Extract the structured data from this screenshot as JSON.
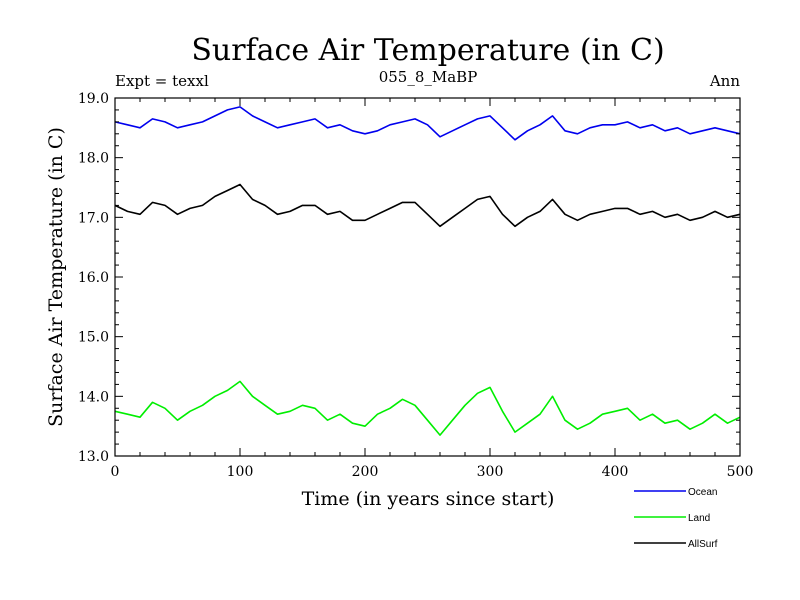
{
  "chart_data": {
    "type": "line",
    "title": "Surface Air Temperature (in C)",
    "subtitle_left": "Expt = texxl",
    "subtitle_center": "055_8_MaBP",
    "subtitle_right": "Ann",
    "xlabel": "Time (in years since start)",
    "ylabel": "Surface Air Temperature (in C)",
    "xlim": [
      0,
      500
    ],
    "ylim": [
      13.0,
      19.0
    ],
    "x_ticks": [
      0,
      100,
      200,
      300,
      400,
      500
    ],
    "y_ticks": [
      13.0,
      14.0,
      15.0,
      16.0,
      17.0,
      18.0,
      19.0
    ],
    "y_tick_labels": [
      "13.0",
      "14.0",
      "15.0",
      "16.0",
      "17.0",
      "18.0",
      "19.0"
    ],
    "grid": false,
    "legend_position": "bottom-right, below plot",
    "series": [
      {
        "name": "Ocean",
        "color": "#0000ee",
        "x": [
          0,
          10,
          20,
          30,
          40,
          50,
          60,
          70,
          80,
          90,
          100,
          110,
          120,
          130,
          140,
          150,
          160,
          170,
          180,
          190,
          200,
          210,
          220,
          230,
          240,
          250,
          260,
          270,
          280,
          290,
          300,
          310,
          320,
          330,
          340,
          350,
          360,
          370,
          380,
          390,
          400,
          410,
          420,
          430,
          440,
          450,
          460,
          470,
          480,
          490,
          500
        ],
        "values": [
          18.6,
          18.55,
          18.5,
          18.65,
          18.6,
          18.5,
          18.55,
          18.6,
          18.7,
          18.8,
          18.85,
          18.7,
          18.6,
          18.5,
          18.55,
          18.6,
          18.65,
          18.5,
          18.55,
          18.45,
          18.4,
          18.45,
          18.55,
          18.6,
          18.65,
          18.55,
          18.35,
          18.45,
          18.55,
          18.65,
          18.7,
          18.5,
          18.3,
          18.45,
          18.55,
          18.7,
          18.45,
          18.4,
          18.5,
          18.55,
          18.55,
          18.6,
          18.5,
          18.55,
          18.45,
          18.5,
          18.4,
          18.45,
          18.5,
          18.45,
          18.4
        ]
      },
      {
        "name": "Land",
        "color": "#00ee00",
        "x": [
          0,
          10,
          20,
          30,
          40,
          50,
          60,
          70,
          80,
          90,
          100,
          110,
          120,
          130,
          140,
          150,
          160,
          170,
          180,
          190,
          200,
          210,
          220,
          230,
          240,
          250,
          260,
          270,
          280,
          290,
          300,
          310,
          320,
          330,
          340,
          350,
          360,
          370,
          380,
          390,
          400,
          410,
          420,
          430,
          440,
          450,
          460,
          470,
          480,
          490,
          500
        ],
        "values": [
          13.75,
          13.7,
          13.65,
          13.9,
          13.8,
          13.6,
          13.75,
          13.85,
          14.0,
          14.1,
          14.25,
          14.0,
          13.85,
          13.7,
          13.75,
          13.85,
          13.8,
          13.6,
          13.7,
          13.55,
          13.5,
          13.7,
          13.8,
          13.95,
          13.85,
          13.6,
          13.35,
          13.6,
          13.85,
          14.05,
          14.15,
          13.75,
          13.4,
          13.55,
          13.7,
          14.0,
          13.6,
          13.45,
          13.55,
          13.7,
          13.75,
          13.8,
          13.6,
          13.7,
          13.55,
          13.6,
          13.45,
          13.55,
          13.7,
          13.55,
          13.65
        ]
      },
      {
        "name": "AllSurf",
        "color": "#000000",
        "x": [
          0,
          10,
          20,
          30,
          40,
          50,
          60,
          70,
          80,
          90,
          100,
          110,
          120,
          130,
          140,
          150,
          160,
          170,
          180,
          190,
          200,
          210,
          220,
          230,
          240,
          250,
          260,
          270,
          280,
          290,
          300,
          310,
          320,
          330,
          340,
          350,
          360,
          370,
          380,
          390,
          400,
          410,
          420,
          430,
          440,
          450,
          460,
          470,
          480,
          490,
          500
        ],
        "values": [
          17.2,
          17.1,
          17.05,
          17.25,
          17.2,
          17.05,
          17.15,
          17.2,
          17.35,
          17.45,
          17.55,
          17.3,
          17.2,
          17.05,
          17.1,
          17.2,
          17.2,
          17.05,
          17.1,
          16.95,
          16.95,
          17.05,
          17.15,
          17.25,
          17.25,
          17.05,
          16.85,
          17.0,
          17.15,
          17.3,
          17.35,
          17.05,
          16.85,
          17.0,
          17.1,
          17.3,
          17.05,
          16.95,
          17.05,
          17.1,
          17.15,
          17.15,
          17.05,
          17.1,
          17.0,
          17.05,
          16.95,
          17.0,
          17.1,
          17.0,
          17.05
        ]
      }
    ]
  }
}
